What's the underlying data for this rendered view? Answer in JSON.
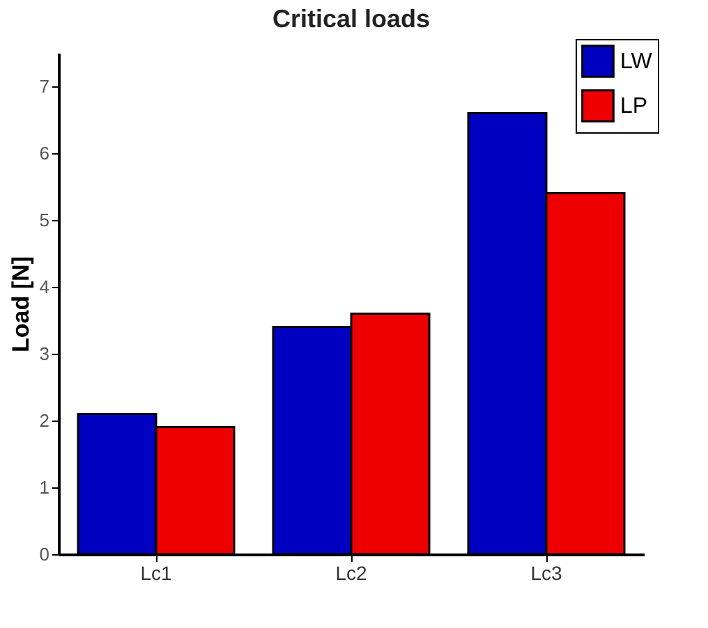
{
  "chart_data": {
    "type": "bar",
    "title": "Critical loads",
    "ylabel": "Load [N]",
    "categories": [
      "Lc1",
      "Lc2",
      "Lc3"
    ],
    "series": [
      {
        "name": "LW",
        "color": "#0000c0",
        "values": [
          2.1,
          3.4,
          6.6
        ]
      },
      {
        "name": "LP",
        "color": "#ee0000",
        "values": [
          1.9,
          3.6,
          5.4
        ]
      }
    ],
    "ylim": [
      0,
      7.5
    ],
    "yticks": [
      0,
      1,
      2,
      3,
      4,
      5,
      6,
      7
    ],
    "grid": false,
    "legend": "top right"
  }
}
